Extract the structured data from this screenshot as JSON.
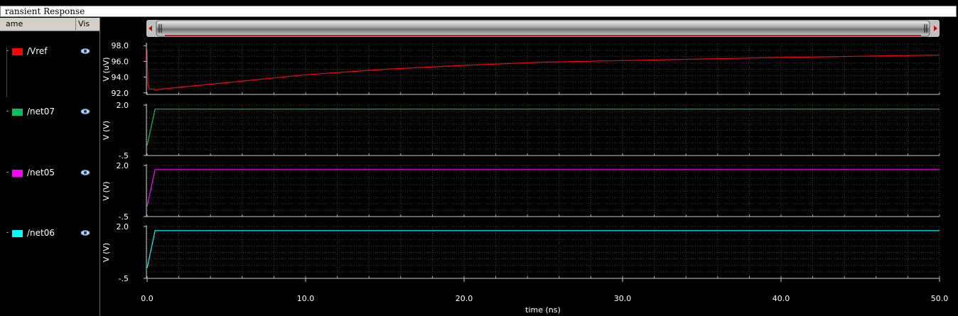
{
  "window": {
    "title": "ransient Response"
  },
  "sidebar": {
    "col_name": "ame",
    "col_vis": "Vis",
    "signals": [
      {
        "label": "/Vref",
        "color": "#ff0000"
      },
      {
        "label": "/net07",
        "color": "#00c060"
      },
      {
        "label": "/net05",
        "color": "#ff00ff"
      },
      {
        "label": "/net06",
        "color": "#00ffff"
      }
    ]
  },
  "chart_data": {
    "type": "line",
    "xlabel": "time (ns)",
    "xlim": [
      0,
      50
    ],
    "x_ticks": [
      "0.0",
      "10.0",
      "20.0",
      "30.0",
      "40.0",
      "50.0"
    ],
    "grid": true,
    "panels": [
      {
        "signal": "/Vref",
        "ylabel": "V (uV)",
        "ylim": [
          91.8,
          98.2
        ],
        "y_ticks": [
          "98.0",
          "96.0",
          "94.0",
          "92.0"
        ],
        "y_tick_values": [
          98.0,
          96.0,
          94.0,
          92.0
        ],
        "color": "#ff0000",
        "x": [
          0,
          0.05,
          0.15,
          0.6,
          2,
          5,
          10,
          15,
          20,
          25,
          30,
          35,
          40,
          45,
          50
        ],
        "y": [
          97.5,
          93.0,
          92.5,
          92.4,
          92.7,
          93.3,
          94.3,
          95.0,
          95.5,
          95.9,
          96.1,
          96.3,
          96.5,
          96.65,
          96.8
        ]
      },
      {
        "signal": "/net07",
        "ylabel": "V (V)",
        "ylim": [
          -0.5,
          2.0
        ],
        "y_ticks": [
          "2.0",
          "-.5"
        ],
        "y_tick_values": [
          2.0,
          -0.5
        ],
        "color": "#00c060",
        "x": [
          0,
          0.5,
          50
        ],
        "y": [
          0.0,
          1.8,
          1.8
        ]
      },
      {
        "signal": "/net05",
        "ylabel": "V (V)",
        "ylim": [
          -0.5,
          2.0
        ],
        "y_ticks": [
          "2.0",
          "-.5"
        ],
        "y_tick_values": [
          2.0,
          -0.5
        ],
        "color": "#ff00ff",
        "x": [
          0,
          0.5,
          50
        ],
        "y": [
          0.0,
          1.8,
          1.8
        ]
      },
      {
        "signal": "/net06",
        "ylabel": "V (V)",
        "ylim": [
          -0.5,
          2.0
        ],
        "y_ticks": [
          "2.0",
          "-.5"
        ],
        "y_tick_values": [
          2.0,
          -0.5
        ],
        "color": "#00ffff",
        "x": [
          0,
          0.5,
          50
        ],
        "y": [
          0.0,
          1.8,
          1.8
        ]
      }
    ]
  }
}
